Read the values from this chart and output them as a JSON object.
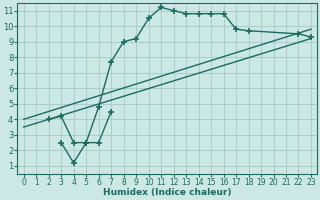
{
  "bg_color": "#cce8e4",
  "grid_color": "#aaceca",
  "line_color": "#1a6b60",
  "marker": "+",
  "marker_size": 4,
  "line_width": 1.0,
  "xlabel": "Humidex (Indice chaleur)",
  "xlim": [
    -0.5,
    23.5
  ],
  "ylim": [
    0.5,
    11.5
  ],
  "xticks": [
    0,
    1,
    2,
    3,
    4,
    5,
    6,
    7,
    8,
    9,
    10,
    11,
    12,
    13,
    14,
    15,
    16,
    17,
    18,
    19,
    20,
    21,
    22,
    23
  ],
  "yticks": [
    1,
    2,
    3,
    4,
    5,
    6,
    7,
    8,
    9,
    10,
    11
  ],
  "series": [
    {
      "x": [
        2,
        3,
        4,
        5,
        6,
        7,
        8,
        9,
        10,
        11,
        12,
        13,
        14,
        15,
        16,
        17,
        18,
        22,
        23
      ],
      "y": [
        4.0,
        4.2,
        2.5,
        2.5,
        4.8,
        7.7,
        9.0,
        9.2,
        10.5,
        11.2,
        11.0,
        10.8,
        10.8,
        10.8,
        10.8,
        9.8,
        9.7,
        9.5,
        9.3
      ],
      "marker": "+"
    },
    {
      "x": [
        3,
        4,
        5,
        6,
        7
      ],
      "y": [
        2.5,
        1.2,
        2.5,
        2.5,
        4.5
      ],
      "marker": "+"
    },
    {
      "x": [
        0,
        23
      ],
      "y": [
        3.5,
        9.2
      ],
      "marker": "none"
    },
    {
      "x": [
        0,
        23
      ],
      "y": [
        4.0,
        9.8
      ],
      "marker": "none"
    }
  ]
}
